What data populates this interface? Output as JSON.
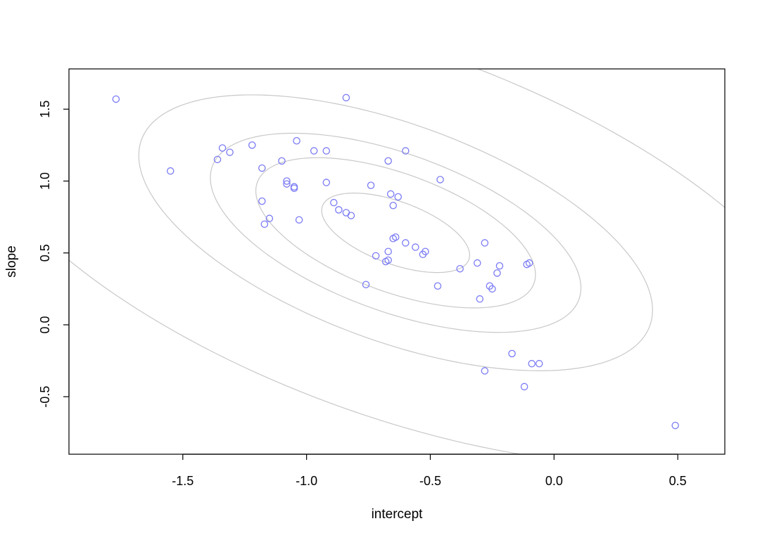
{
  "chart_data": {
    "type": "scatter",
    "xlabel": "intercept",
    "ylabel": "slope",
    "xlim": [
      -1.96,
      0.69
    ],
    "ylim": [
      -0.9,
      1.78
    ],
    "x_ticks": [
      -1.5,
      -1.0,
      -0.5,
      0.0,
      0.5
    ],
    "x_tick_labels": [
      "-1.5",
      "-1.0",
      "-0.5",
      "0.0",
      "0.5"
    ],
    "y_ticks": [
      -0.5,
      0.0,
      0.5,
      1.0,
      1.5
    ],
    "y_tick_labels": [
      "-0.5",
      "0.0",
      "0.5",
      "1.0",
      "1.5"
    ],
    "grid": false,
    "colors": {
      "points": "#7b7bf5",
      "contours": "#c8c8c8",
      "frame": "#000000"
    },
    "contours": {
      "center": [
        -0.64,
        0.64
      ],
      "angle_deg": -41,
      "levels": [
        {
          "major": 0.36,
          "minor": 0.19
        },
        {
          "major": 0.68,
          "minor": 0.36
        },
        {
          "major": 0.9,
          "minor": 0.48
        },
        {
          "major": 1.25,
          "minor": 0.66
        },
        {
          "major": 2.1,
          "minor": 1.11
        }
      ]
    },
    "series": [
      {
        "x": [
          -1.77,
          -0.84,
          -1.55,
          -1.34,
          -1.31,
          -1.36,
          -1.22,
          -1.04,
          -0.97,
          -0.92,
          -1.18,
          -1.1,
          -1.08,
          -1.08,
          -1.05,
          -1.05,
          -0.92,
          -0.74,
          -0.67,
          -0.6,
          -0.46,
          -0.66,
          -0.63,
          -0.65,
          -1.18,
          -0.89,
          -0.87,
          -0.84,
          -0.82,
          -1.15,
          -1.17,
          -1.03,
          -0.65,
          -0.64,
          -0.6,
          -0.56,
          -0.52,
          -0.53,
          -0.72,
          -0.67,
          -0.67,
          -0.68,
          -0.76,
          -0.47,
          -0.38,
          -0.31,
          -0.28,
          -0.22,
          -0.23,
          -0.26,
          -0.25,
          -0.3,
          -0.11,
          -0.1,
          -0.17,
          -0.09,
          -0.06,
          -0.28,
          -0.12,
          0.49
        ],
        "y": [
          1.57,
          1.58,
          1.07,
          1.23,
          1.2,
          1.15,
          1.25,
          1.28,
          1.21,
          1.21,
          1.09,
          1.14,
          1.0,
          0.98,
          0.96,
          0.95,
          0.99,
          0.97,
          1.14,
          1.21,
          1.01,
          0.91,
          0.89,
          0.83,
          0.86,
          0.85,
          0.8,
          0.78,
          0.76,
          0.74,
          0.7,
          0.73,
          0.6,
          0.61,
          0.57,
          0.54,
          0.51,
          0.49,
          0.48,
          0.51,
          0.45,
          0.44,
          0.28,
          0.27,
          0.39,
          0.43,
          0.57,
          0.41,
          0.36,
          0.27,
          0.25,
          0.18,
          0.42,
          0.43,
          -0.2,
          -0.27,
          -0.27,
          -0.32,
          -0.43,
          -0.7
        ]
      }
    ]
  }
}
